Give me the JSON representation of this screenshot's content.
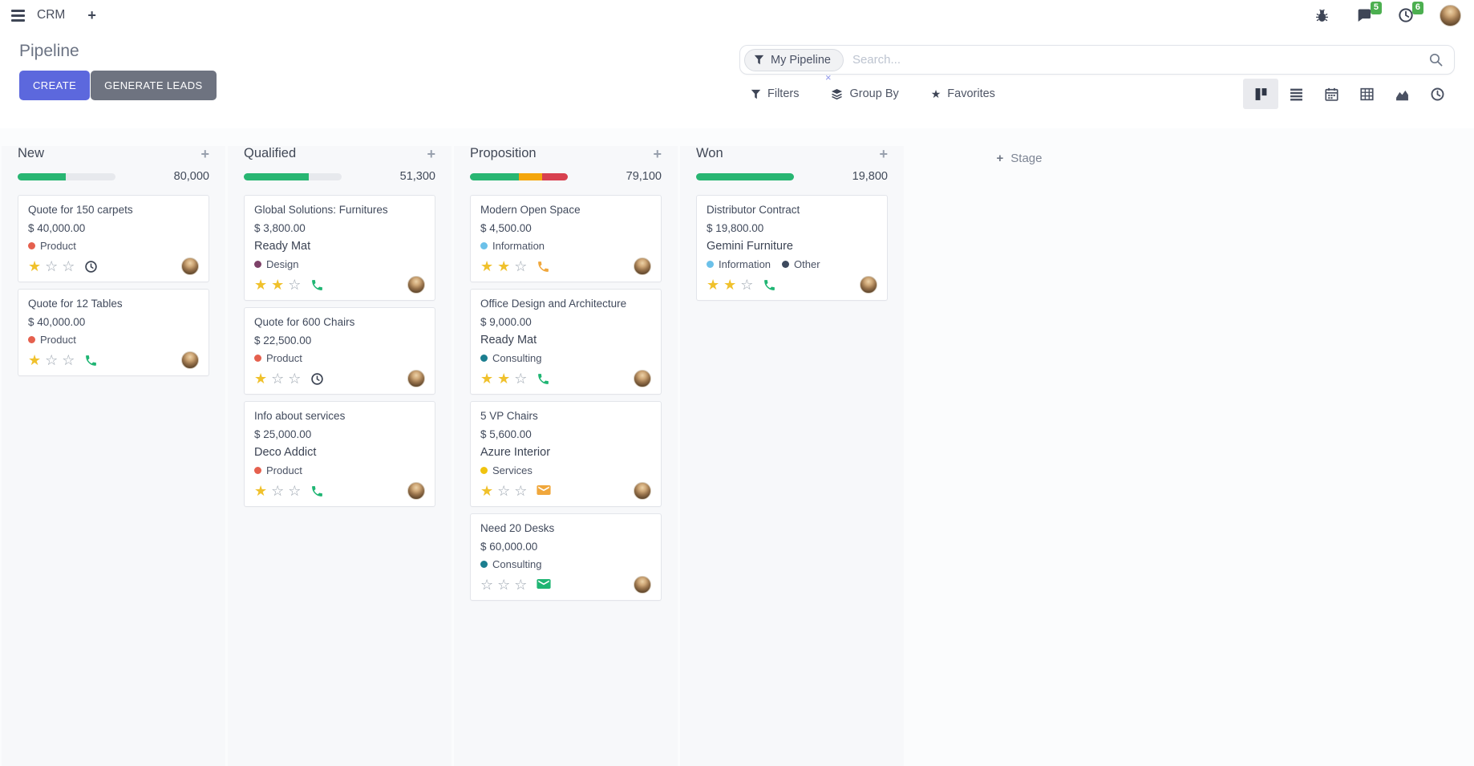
{
  "navbar": {
    "app_name": "CRM",
    "messages_badge": "5",
    "activities_badge": "6",
    "icons": [
      "menu-icon",
      "plus-icon",
      "bug-icon",
      "messages-icon",
      "activities-icon",
      "avatar"
    ]
  },
  "control_panel": {
    "title": "Pipeline",
    "buttons": {
      "create": "CREATE",
      "generate_leads": "GENERATE LEADS"
    },
    "search": {
      "facet_label": "My Pipeline",
      "placeholder": "Search...",
      "facet_remove": "×"
    },
    "menus": {
      "filters": "Filters",
      "group_by": "Group By",
      "favorites": "Favorites"
    },
    "view_switcher": [
      {
        "name": "kanban",
        "active": true
      },
      {
        "name": "list",
        "active": false
      },
      {
        "name": "calendar",
        "active": false
      },
      {
        "name": "pivot",
        "active": false
      },
      {
        "name": "graph",
        "active": false
      },
      {
        "name": "activity",
        "active": false
      }
    ]
  },
  "colors": {
    "progress": {
      "green": "#28b672",
      "orange": "#f4a60b",
      "red": "#d8414f",
      "track": "#e7e9ed"
    },
    "activity": {
      "green": "#1fb573",
      "orange": "#f0a73c",
      "dark": "#3c4453"
    },
    "star_filled": "#f0c12c",
    "badge_green": "#4caf50",
    "primary_button": "#5c68dd",
    "secondary_button": "#6e7380"
  },
  "board": {
    "add_stage_label": "Stage",
    "columns": [
      {
        "name": "New",
        "counter": "80,000",
        "progress_segments": [
          {
            "color": "green",
            "pct": 49
          }
        ],
        "cards": [
          {
            "title": "Quote for 150 carpets",
            "amount": "$ 40,000.00",
            "tags": [
              {
                "label": "Product",
                "color": "#e5604e"
              }
            ],
            "stars": 1,
            "activity": {
              "icon": "clock",
              "color": "dark"
            }
          },
          {
            "title": "Quote for 12 Tables",
            "amount": "$ 40,000.00",
            "tags": [
              {
                "label": "Product",
                "color": "#e5604e"
              }
            ],
            "stars": 1,
            "activity": {
              "icon": "phone",
              "color": "green"
            }
          }
        ]
      },
      {
        "name": "Qualified",
        "counter": "51,300",
        "progress_segments": [
          {
            "color": "green",
            "pct": 66
          }
        ],
        "cards": [
          {
            "title": "Global Solutions: Furnitures",
            "amount": "$ 3,800.00",
            "partner": "Ready Mat",
            "tags": [
              {
                "label": "Design",
                "color": "#7d4168"
              }
            ],
            "stars": 2,
            "activity": {
              "icon": "phone",
              "color": "green"
            }
          },
          {
            "title": "Quote for 600 Chairs",
            "amount": "$ 22,500.00",
            "tags": [
              {
                "label": "Product",
                "color": "#e5604e"
              }
            ],
            "stars": 1,
            "activity": {
              "icon": "clock",
              "color": "dark"
            }
          },
          {
            "title": "Info about services",
            "amount": "$ 25,000.00",
            "partner": "Deco Addict",
            "tags": [
              {
                "label": "Product",
                "color": "#e5604e"
              }
            ],
            "stars": 1,
            "activity": {
              "icon": "phone",
              "color": "green"
            }
          }
        ]
      },
      {
        "name": "Proposition",
        "counter": "79,100",
        "progress_segments": [
          {
            "color": "green",
            "pct": 50
          },
          {
            "color": "orange",
            "pct": 24
          },
          {
            "color": "red",
            "pct": 26
          }
        ],
        "cards": [
          {
            "title": "Modern Open Space",
            "amount": "$ 4,500.00",
            "tags": [
              {
                "label": "Information",
                "color": "#6cc1e9"
              }
            ],
            "stars": 2,
            "activity": {
              "icon": "phone",
              "color": "orange"
            }
          },
          {
            "title": "Office Design and Architecture",
            "amount": "$ 9,000.00",
            "partner": "Ready Mat",
            "tags": [
              {
                "label": "Consulting",
                "color": "#1b7e8f"
              }
            ],
            "stars": 2,
            "activity": {
              "icon": "phone",
              "color": "green"
            }
          },
          {
            "title": "5 VP Chairs",
            "amount": "$ 5,600.00",
            "partner": "Azure Interior",
            "tags": [
              {
                "label": "Services",
                "color": "#f0c30f"
              }
            ],
            "stars": 1,
            "activity": {
              "icon": "envelope",
              "color": "orange"
            }
          },
          {
            "title": "Need 20 Desks",
            "amount": "$ 60,000.00",
            "tags": [
              {
                "label": "Consulting",
                "color": "#1b7e8f"
              }
            ],
            "stars": 0,
            "activity": {
              "icon": "envelope",
              "color": "green"
            }
          }
        ]
      },
      {
        "name": "Won",
        "counter": "19,800",
        "progress_segments": [
          {
            "color": "green",
            "pct": 100
          }
        ],
        "cards": [
          {
            "title": "Distributor Contract",
            "amount": "$ 19,800.00",
            "partner": "Gemini Furniture",
            "tags": [
              {
                "label": "Information",
                "color": "#6cc1e9"
              },
              {
                "label": "Other",
                "color": "#3d4a5e"
              }
            ],
            "stars": 2,
            "activity": {
              "icon": "phone",
              "color": "green"
            }
          }
        ]
      }
    ]
  }
}
